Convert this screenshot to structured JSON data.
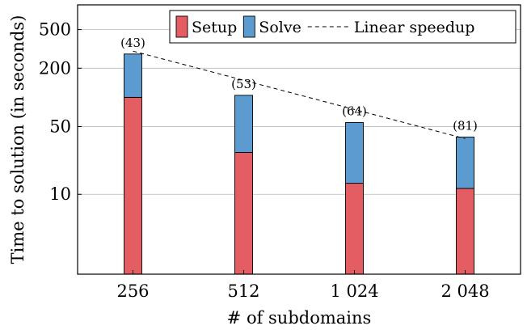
{
  "chart_data": {
    "type": "bar",
    "stacked": true,
    "xlabel": "# of subdomains",
    "ylabel": "Time to solution (in seconds)",
    "yscale": "log",
    "ylim": [
      1.5,
      900
    ],
    "yticks": [
      10,
      50,
      200,
      500
    ],
    "ytick_labels": [
      "10",
      "50",
      "200",
      "500"
    ],
    "categories": [
      "256",
      "512",
      "1 024",
      "2 048"
    ],
    "series": [
      {
        "name": "Setup",
        "color": "#e35d63",
        "values": [
          100,
          27,
          13,
          11.5
        ]
      },
      {
        "name": "Solve",
        "color": "#5b9bd0",
        "values": [
          180,
          78,
          42,
          27.5
        ]
      }
    ],
    "totals": [
      280,
      105,
      55,
      39
    ],
    "bar_labels": [
      "(43)",
      "(53)",
      "(64)",
      "(81)"
    ],
    "reference_line": {
      "name": "Linear speedup",
      "style": "dashed",
      "values": [
        300,
        150,
        75,
        37.5
      ]
    },
    "legend": {
      "position": "top-right",
      "entries": [
        {
          "label": "Setup",
          "kind": "swatch",
          "color": "#e35d63"
        },
        {
          "label": "Solve",
          "kind": "swatch",
          "color": "#5b9bd0"
        },
        {
          "label": "Linear speedup",
          "kind": "dashed-line"
        }
      ]
    },
    "grid": {
      "y": true,
      "x": false
    }
  }
}
